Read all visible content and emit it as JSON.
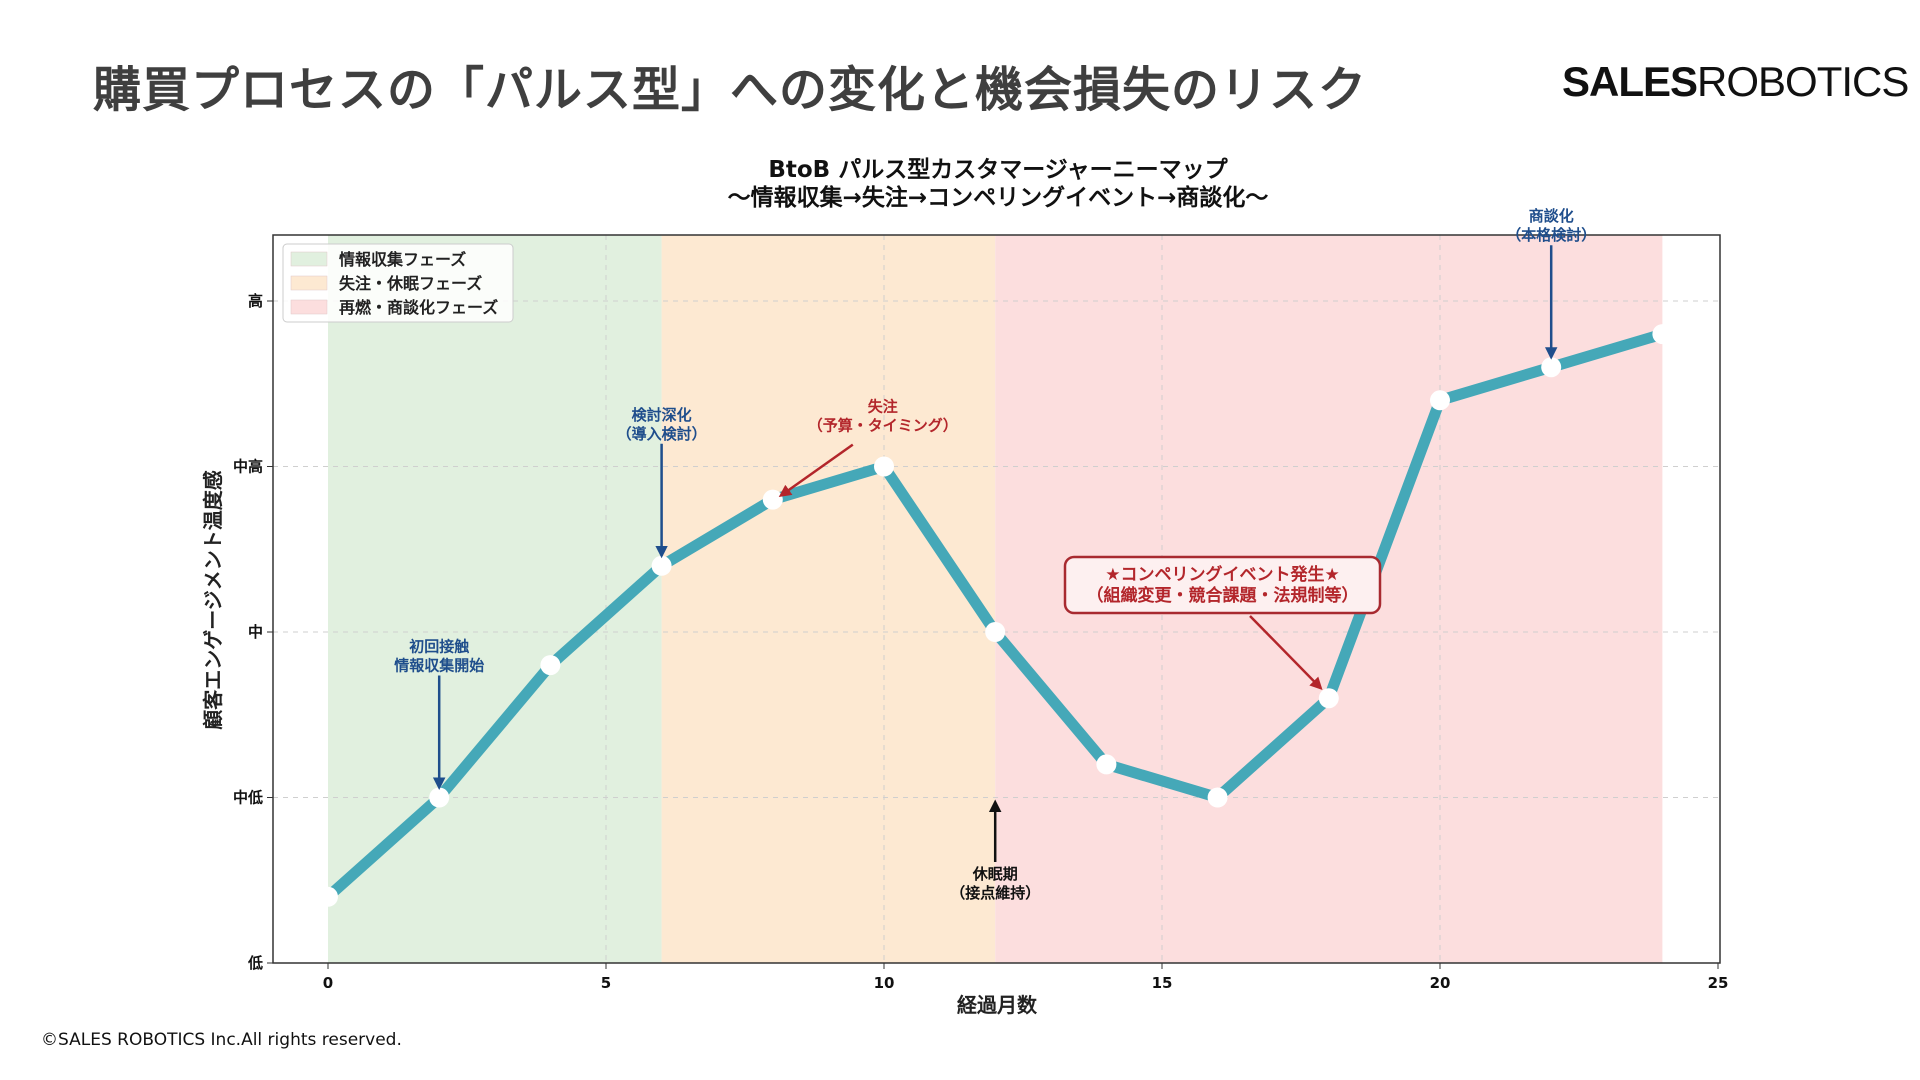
{
  "header": {
    "title": "購買プロセスの「パルス型」への変化と機会損失のリスク",
    "logo_bold": "SALES",
    "logo_regular": "ROBOTICS"
  },
  "footer": {
    "copyright": "©SALES ROBOTICS Inc.All rights reserved."
  },
  "colors": {
    "line": "#45a8b8",
    "marker": "#ffffff",
    "phase_green": "#e1f0df",
    "phase_orange": "#fde9d2",
    "phase_red": "#fcdede",
    "annotation_blue": "#1f4e8c",
    "annotation_red": "#b3262b",
    "annotation_black": "#111111"
  },
  "chart_data": {
    "type": "line",
    "title": "BtoB パルス型カスタマージャーニーマップ",
    "subtitle": "〜情報収集→失注→コンペリングイベント→商談化〜",
    "xlabel": "経過月数",
    "ylabel": "顧客エンゲージメント温度感",
    "xlim": [
      -1,
      25
    ],
    "ylim": [
      0,
      4.4
    ],
    "x_ticks": [
      0,
      5,
      10,
      15,
      20,
      25
    ],
    "x_tick_labels": [
      "0",
      "5",
      "10",
      "15",
      "20",
      "25"
    ],
    "y_ticks": [
      0,
      1,
      2,
      3,
      4
    ],
    "y_tick_labels": [
      "低",
      "中低",
      "中",
      "中高",
      "高"
    ],
    "grid": true,
    "legend_position": "top-left",
    "series": [
      {
        "name": "顧客エンゲージメント温度感",
        "x": [
          0,
          2,
          4,
          6,
          8,
          10,
          12,
          14,
          16,
          18,
          20,
          22,
          24
        ],
        "y": [
          0.4,
          1.0,
          1.8,
          2.4,
          2.8,
          3.0,
          2.0,
          1.2,
          1.0,
          1.6,
          3.4,
          3.6,
          3.8
        ]
      }
    ],
    "phases": [
      {
        "label": "情報収集フェーズ",
        "start": 0,
        "end": 6,
        "color": "#e1f0df"
      },
      {
        "label": "失注・休眠フェーズ",
        "start": 6,
        "end": 12,
        "color": "#fde9d2"
      },
      {
        "label": "再燃・商談化フェーズ",
        "start": 12,
        "end": 24,
        "color": "#fcdede"
      }
    ],
    "annotations": [
      {
        "lines": [
          "初回接触",
          "情報収集開始"
        ],
        "x": 2,
        "y": 1.0,
        "style": "blue",
        "direction": "down"
      },
      {
        "lines": [
          "検討深化",
          "（導入検討）"
        ],
        "x": 6,
        "y": 2.4,
        "style": "blue",
        "direction": "down"
      },
      {
        "lines": [
          "失注",
          "（予算・タイミング）"
        ],
        "x": 8,
        "y": 2.8,
        "style": "red",
        "direction": "diagonal"
      },
      {
        "lines": [
          "休眠期",
          "（接点維持）"
        ],
        "x": 12,
        "y": 1.0,
        "style": "black",
        "direction": "up"
      },
      {
        "lines": [
          "★コンペリングイベント発生★",
          "（組織変更・競合課題・法規制等）"
        ],
        "x": 18,
        "y": 1.6,
        "style": "box",
        "direction": "diagonal"
      },
      {
        "lines": [
          "商談化",
          "（本格検討）"
        ],
        "x": 22,
        "y": 3.6,
        "style": "blue",
        "direction": "down"
      }
    ]
  }
}
